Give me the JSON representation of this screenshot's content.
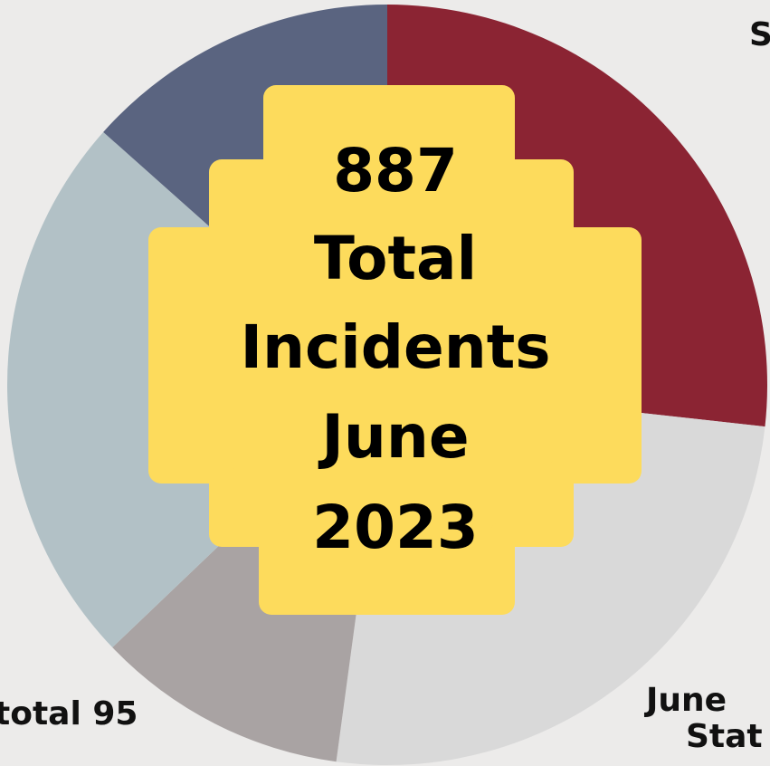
{
  "chart_data": {
    "type": "pie",
    "values": [
      237,
      225,
      95,
      210,
      119
    ],
    "colors": [
      "#8b2433",
      "#d9d9d9",
      "#a9a3a3",
      "#b2c1c6",
      "#5a6480"
    ],
    "center_text": [
      "887",
      "Total",
      "Incidents",
      "June",
      "2023"
    ],
    "annotations": [
      "S",
      "June",
      "Stat",
      "total 95"
    ]
  }
}
